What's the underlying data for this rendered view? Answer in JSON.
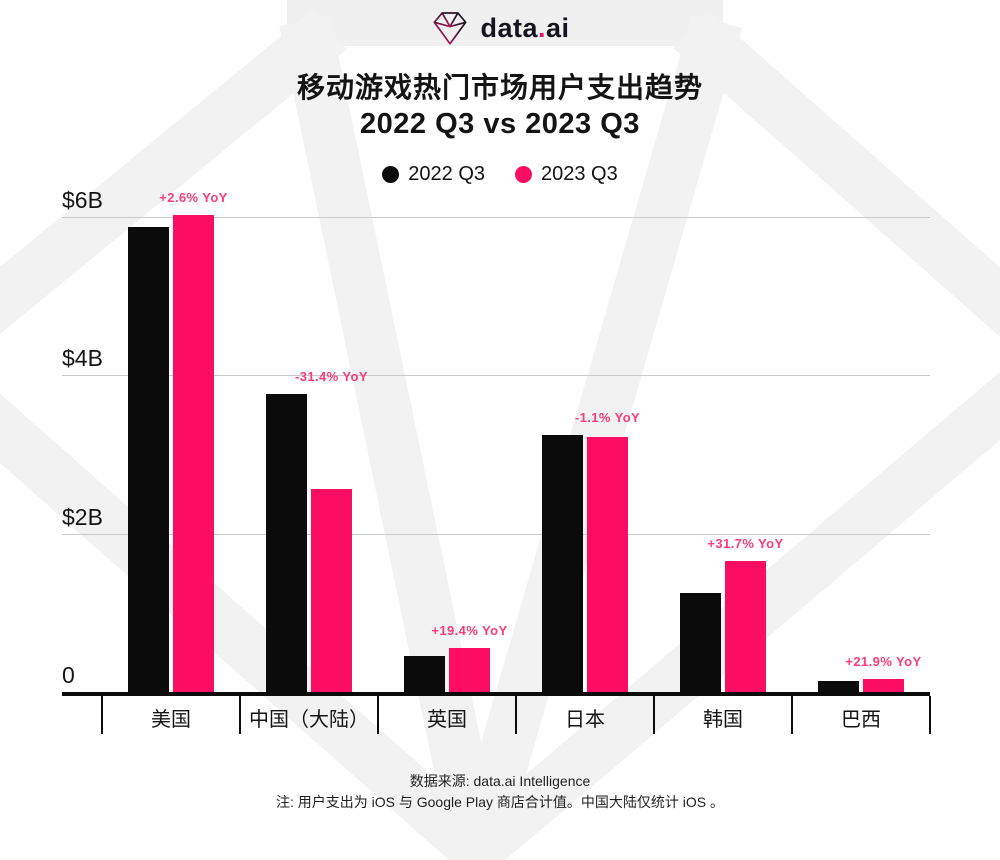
{
  "brand": {
    "name_pre": "data",
    "dot": ".",
    "name_post": "ai"
  },
  "chart_data": {
    "type": "bar",
    "title": "移动游戏热门市场用户支出趋势",
    "subtitle": "2022 Q3 vs 2023 Q3",
    "unit": "USD billions (user spend per quarter)",
    "categories": [
      "美国",
      "中国（大陆）",
      "英国",
      "日本",
      "韩国",
      "巴西"
    ],
    "series": [
      {
        "name": "2022 Q3",
        "color": "#0b0b0b",
        "values": [
          5.87,
          3.76,
          0.46,
          3.25,
          1.25,
          0.14
        ]
      },
      {
        "name": "2023 Q3",
        "color": "#fb0d64",
        "values": [
          6.02,
          2.57,
          0.55,
          3.22,
          1.65,
          0.17
        ]
      }
    ],
    "yoy_labels": [
      "+2.6% YoY",
      "-31.4% YoY",
      "+19.4% YoY",
      "-1.1% YoY",
      "+31.7% YoY",
      "+21.9% YoY"
    ],
    "y_axis": {
      "ticks": [
        {
          "label": "$6B",
          "value": 6
        },
        {
          "label": "$4B",
          "value": 4
        },
        {
          "label": "$2B",
          "value": 2
        },
        {
          "label": "0",
          "value": 0
        }
      ],
      "range": [
        0,
        6.3
      ]
    },
    "grid": "horizontal",
    "legend_position": "top"
  },
  "footer": {
    "source": "数据来源: data.ai Intelligence",
    "note": "注: 用户支出为 iOS 与 Google Play 商店合计值。中国大陆仅统计 iOS 。"
  },
  "colors": {
    "bar_2022": "#0b0b0b",
    "bar_2023": "#fb0d64",
    "yoy_label": "#fb3d78",
    "gridline": "#c9c9c9",
    "watermark": "#f2f2f2",
    "background": "#ffffff",
    "brand_pink": "#e8186b"
  }
}
